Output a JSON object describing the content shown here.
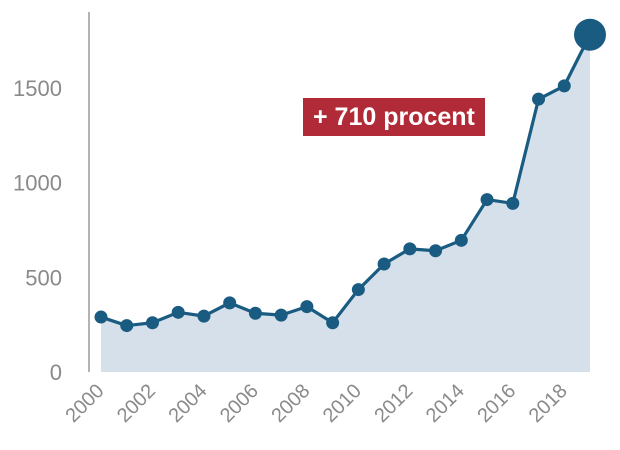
{
  "colors": {
    "line": "#1a5b82",
    "area": "#d5e0ea",
    "axis": "#9a9a9a",
    "annotation_bg": "#b12a37",
    "annotation_text": "#ffffff"
  },
  "chart_data": {
    "type": "area",
    "title": "",
    "xlabel": "",
    "ylabel": "",
    "x": [
      2000,
      2001,
      2002,
      2003,
      2004,
      2005,
      2006,
      2007,
      2008,
      2009,
      2010,
      2011,
      2012,
      2013,
      2014,
      2015,
      2016,
      2017,
      2018,
      2019
    ],
    "values": [
      290,
      245,
      260,
      315,
      295,
      365,
      310,
      300,
      345,
      260,
      435,
      570,
      650,
      640,
      695,
      910,
      890,
      1440,
      1510,
      1780
    ],
    "ylim": [
      0,
      1900
    ],
    "xlim": [
      2000,
      2019
    ],
    "yticks": [
      0,
      500,
      1000,
      1500
    ],
    "xticks": [
      2000,
      2002,
      2004,
      2006,
      2008,
      2010,
      2012,
      2014,
      2016,
      2018
    ],
    "grid": false,
    "legend": "none",
    "annotation": "+ 710 procent"
  }
}
